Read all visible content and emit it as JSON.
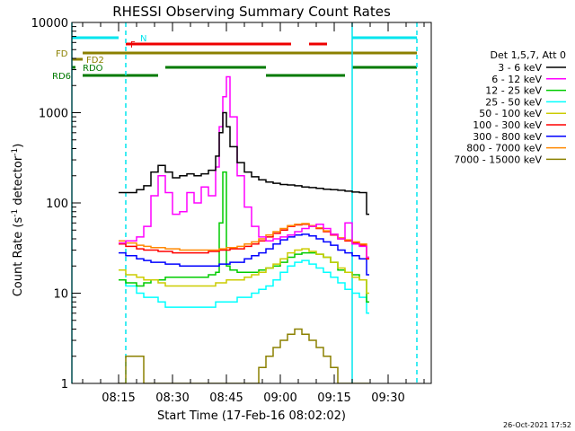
{
  "chart_data": {
    "type": "line",
    "title": "RHESSI Observing Summary Count Rates",
    "xlabel": "Start Time (17-Feb-16 08:02:02)",
    "ylabel": "Count Rate (s",
    "ylabel_sup": "-1",
    "ylabel_tail": " detector",
    "ylabel_sup2": "-1",
    "ylabel_end": ")",
    "yscale": "log",
    "ylim": [
      1,
      10000
    ],
    "xlim": [
      "08:02",
      "09:42"
    ],
    "x_ticks": [
      "08:15",
      "08:30",
      "08:45",
      "09:00",
      "09:15",
      "09:30"
    ],
    "y_ticks": [
      "1",
      "10",
      "100",
      "1000",
      "10000"
    ],
    "legend_title": "Det 1,5,7, Att 0",
    "legend_position": "right",
    "timestamp": "26-Oct-2021 17:52",
    "flags": [
      {
        "label": "N",
        "color": "#00e5ee",
        "segments": [
          [
            "08:02",
            "08:15"
          ],
          [
            "09:20",
            "09:38"
          ]
        ]
      },
      {
        "label": "F",
        "color": "#ee0000",
        "segments": [
          [
            "08:17",
            "09:03"
          ],
          [
            "09:08",
            "09:13"
          ]
        ]
      },
      {
        "label": "FD",
        "color": "#8b8000",
        "segments": [
          [
            "08:05",
            "09:38"
          ]
        ]
      },
      {
        "label": "FD2",
        "color": "#8b8000",
        "segments": [
          [
            "08:02",
            "08:05"
          ]
        ]
      },
      {
        "label": "RDO",
        "color": "#007a00",
        "segments": [
          [
            "08:02",
            "08:03"
          ],
          [
            "08:28",
            "08:56"
          ],
          [
            "09:20",
            "09:38"
          ]
        ]
      },
      {
        "label": "RD6",
        "color": "#007a00",
        "segments": [
          [
            "08:05",
            "08:26"
          ],
          [
            "08:56",
            "09:18"
          ]
        ]
      }
    ],
    "vlines": [
      {
        "time": "08:02",
        "color": "#00e5ee",
        "style": "solid"
      },
      {
        "time": "08:17",
        "color": "#00e5ee",
        "style": "dashed"
      },
      {
        "time": "09:20",
        "color": "#00e5ee",
        "style": "solid"
      },
      {
        "time": "09:38",
        "color": "#00e5ee",
        "style": "dashed"
      }
    ],
    "x": [
      "08:15",
      "08:17",
      "08:20",
      "08:22",
      "08:24",
      "08:26",
      "08:28",
      "08:30",
      "08:32",
      "08:34",
      "08:36",
      "08:38",
      "08:40",
      "08:42",
      "08:43",
      "08:44",
      "08:45",
      "08:46",
      "08:48",
      "08:50",
      "08:52",
      "08:54",
      "08:56",
      "08:58",
      "09:00",
      "09:02",
      "09:04",
      "09:06",
      "09:08",
      "09:10",
      "09:12",
      "09:14",
      "09:16",
      "09:18",
      "09:20",
      "09:22",
      "09:24"
    ],
    "series": [
      {
        "name": "3 - 6 keV",
        "color": "#000000",
        "values": [
          130,
          130,
          140,
          155,
          220,
          260,
          220,
          190,
          200,
          210,
          200,
          210,
          230,
          330,
          600,
          1000,
          700,
          420,
          280,
          220,
          195,
          180,
          170,
          165,
          160,
          158,
          155,
          150,
          148,
          145,
          142,
          140,
          138,
          135,
          132,
          130,
          75
        ]
      },
      {
        "name": "6 - 12 keV",
        "color": "#ff00ff",
        "values": [
          36,
          38,
          42,
          55,
          120,
          200,
          130,
          75,
          80,
          130,
          100,
          150,
          120,
          250,
          700,
          1500,
          2500,
          900,
          200,
          90,
          55,
          42,
          38,
          40,
          42,
          44,
          48,
          52,
          55,
          58,
          52,
          45,
          40,
          60,
          35,
          33,
          25
        ]
      },
      {
        "name": "12 - 25 keV",
        "color": "#00cc00",
        "values": [
          14,
          13,
          12,
          13,
          14,
          14,
          15,
          15,
          15,
          15,
          15,
          15,
          16,
          17,
          60,
          220,
          20,
          18,
          17,
          17,
          17,
          18,
          19,
          20,
          22,
          25,
          27,
          28,
          28,
          27,
          25,
          22,
          18,
          17,
          16,
          14,
          8
        ]
      },
      {
        "name": "25 - 50 keV",
        "color": "#00ffff",
        "values": [
          14,
          12,
          10,
          9,
          9,
          8,
          7,
          7,
          7,
          7,
          7,
          7,
          7,
          8,
          8,
          8,
          8,
          8,
          9,
          9,
          10,
          11,
          12,
          14,
          17,
          20,
          22,
          23,
          21,
          19,
          17,
          15,
          13,
          11,
          10,
          9,
          6
        ]
      },
      {
        "name": "50 - 100 keV",
        "color": "#cccc00",
        "values": [
          18,
          16,
          15,
          14,
          14,
          13,
          12,
          12,
          12,
          12,
          12,
          12,
          12,
          13,
          13,
          13,
          14,
          14,
          14,
          15,
          16,
          17,
          19,
          21,
          24,
          28,
          30,
          31,
          29,
          27,
          25,
          22,
          19,
          17,
          15,
          14,
          10
        ]
      },
      {
        "name": "100 - 300 keV",
        "color": "#ff0000",
        "values": [
          35,
          33,
          31,
          30,
          30,
          29,
          29,
          28,
          28,
          28,
          28,
          28,
          29,
          29,
          30,
          30,
          30,
          31,
          31,
          33,
          35,
          38,
          42,
          46,
          50,
          55,
          57,
          58,
          55,
          52,
          48,
          44,
          40,
          38,
          36,
          34,
          24
        ]
      },
      {
        "name": "300 - 800 keV",
        "color": "#0000ff",
        "values": [
          28,
          26,
          24,
          23,
          22,
          22,
          21,
          21,
          20,
          20,
          20,
          20,
          20,
          20,
          21,
          21,
          21,
          22,
          22,
          24,
          26,
          28,
          31,
          35,
          39,
          42,
          44,
          45,
          43,
          40,
          37,
          34,
          30,
          28,
          26,
          24,
          16
        ]
      },
      {
        "name": "800 - 7000 keV",
        "color": "#ff8800",
        "values": [
          38,
          36,
          34,
          33,
          32,
          32,
          31,
          31,
          30,
          30,
          30,
          30,
          30,
          30,
          31,
          31,
          32,
          32,
          33,
          35,
          37,
          40,
          44,
          48,
          52,
          56,
          58,
          59,
          56,
          53,
          49,
          45,
          41,
          39,
          37,
          35,
          25
        ]
      },
      {
        "name": "7000 - 15000 keV",
        "color": "#8b8000",
        "values": [
          1,
          2,
          2,
          1,
          1,
          1,
          1,
          1,
          1,
          1,
          1,
          1,
          1,
          1,
          1,
          1,
          1,
          1,
          1,
          1,
          1,
          1.5,
          2,
          2.5,
          3,
          3.5,
          4,
          3.5,
          3,
          2.5,
          2,
          1.5,
          1,
          1,
          1,
          1,
          1
        ]
      }
    ]
  }
}
